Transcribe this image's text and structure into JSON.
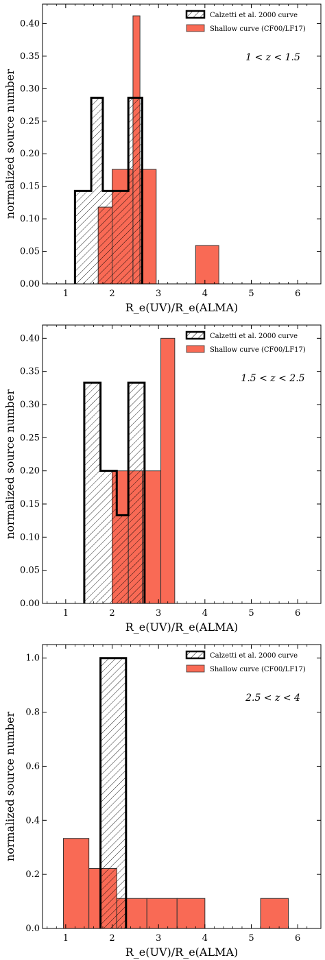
{
  "colors": {
    "shallow_fill": "#f96a55",
    "shallow_edge": "#333333",
    "calzetti_edge": "#000000",
    "hatch": "#000000"
  },
  "chart_data": [
    {
      "type": "bar",
      "xlabel": "R_e(UV)/R_e(ALMA)",
      "ylabel": "normalized source number",
      "annotation": "1 < z < 1.5",
      "xlim": [
        0.5,
        6.5
      ],
      "ylim": [
        0,
        0.43
      ],
      "xticks": [
        "1",
        "2",
        "3",
        "4",
        "5",
        "6"
      ],
      "yticks": [
        "0.00",
        "0.05",
        "0.10",
        "0.15",
        "0.20",
        "0.25",
        "0.30",
        "0.35",
        "0.40"
      ],
      "legend_position": "top-right",
      "series": [
        {
          "name": "Calzetti et al. 2000 curve",
          "style": "hatched-step",
          "bins": [
            [
              1.2,
              1.55,
              0.143
            ],
            [
              1.55,
              1.8,
              0.286
            ],
            [
              1.8,
              2.35,
              0.143
            ],
            [
              2.35,
              2.65,
              0.286
            ]
          ]
        },
        {
          "name": "Shallow curve (CF00/LF17)",
          "style": "filled",
          "bins": [
            [
              1.7,
              2.0,
              0.118
            ],
            [
              2.0,
              2.45,
              0.176
            ],
            [
              2.45,
              2.6,
              0.412
            ],
            [
              2.6,
              2.95,
              0.176
            ],
            [
              3.8,
              4.3,
              0.059
            ]
          ]
        }
      ]
    },
    {
      "type": "bar",
      "xlabel": "R_e(UV)/R_e(ALMA)",
      "ylabel": "normalized source number",
      "annotation": "1.5 < z < 2.5",
      "xlim": [
        0.5,
        6.5
      ],
      "ylim": [
        0,
        0.42
      ],
      "xticks": [
        "1",
        "2",
        "3",
        "4",
        "5",
        "6"
      ],
      "yticks": [
        "0.00",
        "0.05",
        "0.10",
        "0.15",
        "0.20",
        "0.25",
        "0.30",
        "0.35",
        "0.40"
      ],
      "legend_position": "top-right",
      "series": [
        {
          "name": "Calzetti et al. 2000 curve",
          "style": "hatched-step",
          "bins": [
            [
              1.4,
              1.75,
              0.333
            ],
            [
              1.75,
              2.1,
              0.2
            ],
            [
              2.1,
              2.35,
              0.133
            ],
            [
              2.35,
              2.7,
              0.333
            ]
          ]
        },
        {
          "name": "Shallow curve (CF00/LF17)",
          "style": "filled",
          "bins": [
            [
              2.0,
              2.35,
              0.2
            ],
            [
              2.35,
              2.65,
              0.2
            ],
            [
              2.65,
              3.05,
              0.2
            ],
            [
              3.05,
              3.35,
              0.4
            ]
          ]
        }
      ]
    },
    {
      "type": "bar",
      "xlabel": "R_e(UV)/R_e(ALMA)",
      "ylabel": "normalized source number",
      "annotation": "2.5 < z < 4",
      "xlim": [
        0.5,
        6.5
      ],
      "ylim": [
        0,
        1.05
      ],
      "xticks": [
        "1",
        "2",
        "3",
        "4",
        "5",
        "6"
      ],
      "yticks": [
        "0.0",
        "0.2",
        "0.4",
        "0.6",
        "0.8",
        "1.0"
      ],
      "legend_position": "top-right",
      "series": [
        {
          "name": "Calzetti et al. 2000 curve",
          "style": "hatched-step",
          "bins": [
            [
              1.75,
              2.3,
              1.0
            ]
          ]
        },
        {
          "name": "Shallow curve (CF00/LF17)",
          "style": "filled",
          "bins": [
            [
              0.95,
              1.5,
              0.333
            ],
            [
              1.5,
              2.1,
              0.222
            ],
            [
              2.1,
              2.75,
              0.111
            ],
            [
              2.75,
              3.4,
              0.111
            ],
            [
              3.4,
              4.0,
              0.111
            ],
            [
              5.2,
              5.8,
              0.111
            ]
          ]
        }
      ]
    }
  ]
}
